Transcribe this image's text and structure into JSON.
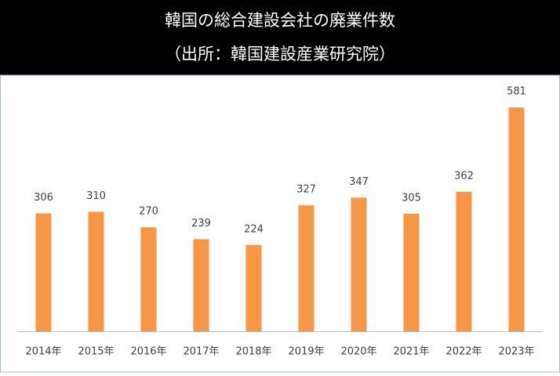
{
  "chart_data": {
    "type": "bar",
    "title": "韓国の総合建設会社の廃業件数",
    "subtitle": "（出所：韓国建設産業研究院）",
    "categories": [
      "2014年",
      "2015年",
      "2016年",
      "2017年",
      "2018年",
      "2019年",
      "2020年",
      "2021年",
      "2022年",
      "2023年"
    ],
    "values": [
      306,
      310,
      270,
      239,
      224,
      327,
      347,
      305,
      362,
      581
    ],
    "color": "#f79646"
  }
}
